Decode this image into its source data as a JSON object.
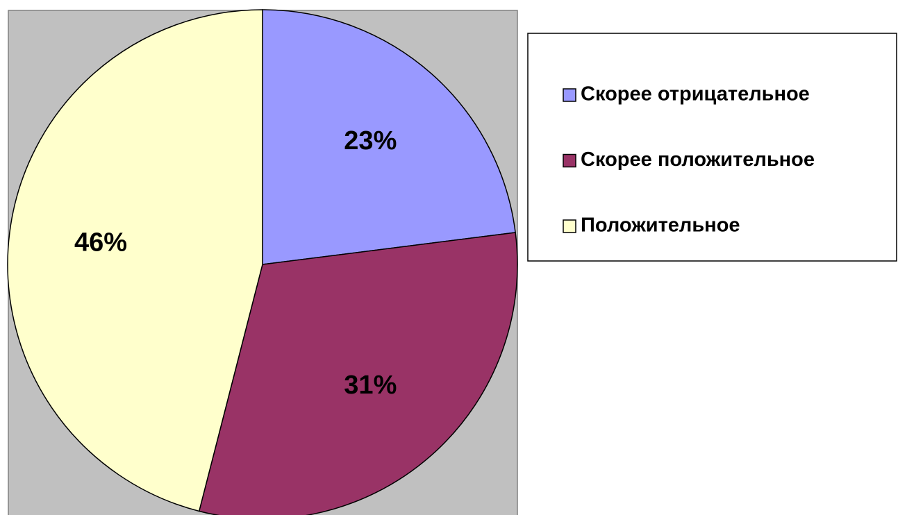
{
  "chart_data": {
    "type": "pie",
    "categories": [
      "Скорее отрицательное",
      "Скорее положительное",
      "Положительное"
    ],
    "values": [
      23,
      31,
      46
    ],
    "value_labels": [
      "23%",
      "31%",
      "46%"
    ],
    "colors": [
      "#9999ff",
      "#993366",
      "#ffffcc"
    ],
    "legend": "right"
  }
}
